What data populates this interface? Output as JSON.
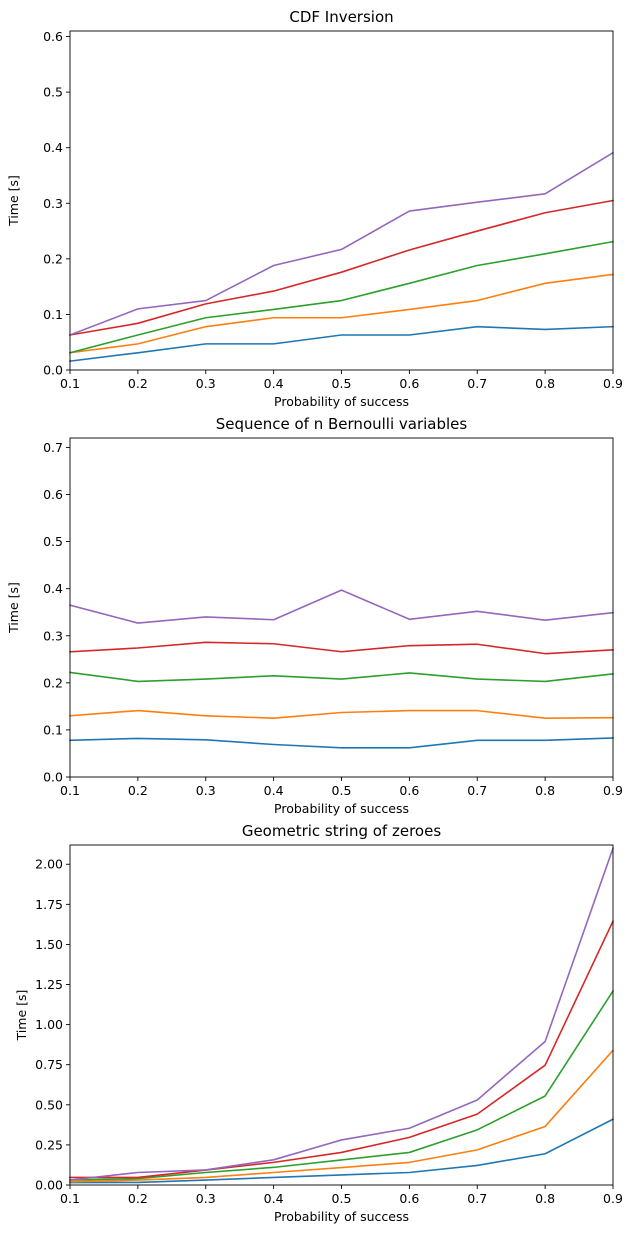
{
  "colors": [
    "#1f77b4",
    "#ff7f0e",
    "#2ca02c",
    "#d62728",
    "#9467bd"
  ],
  "chart_data": [
    {
      "type": "line",
      "title": "CDF Inversion",
      "xlabel": "Probability of success",
      "ylabel": "Time [s]",
      "xlim": [
        0.1,
        0.9
      ],
      "ylim": [
        0,
        0.61
      ],
      "xticks": [
        0.1,
        0.2,
        0.3,
        0.4,
        0.5,
        0.6,
        0.7,
        0.8,
        0.9
      ],
      "xtick_labels": [
        "0.1",
        "0.2",
        "0.3",
        "0.4",
        "0.5",
        "0.6",
        "0.7",
        "0.8",
        "0.9"
      ],
      "yticks": [
        0,
        0.1,
        0.2,
        0.3,
        0.4,
        0.5,
        0.6
      ],
      "ytick_labels": [
        "0.0",
        "0.1",
        "0.2",
        "0.3",
        "0.4",
        "0.5",
        "0.6"
      ],
      "grid": false,
      "x": [
        0.1,
        0.2,
        0.3,
        0.4,
        0.5,
        0.6,
        0.7,
        0.8,
        0.9
      ],
      "series": [
        {
          "values": [
            0.016,
            0.031,
            0.047,
            0.047,
            0.063,
            0.063,
            0.078,
            0.073,
            0.078
          ]
        },
        {
          "values": [
            0.031,
            0.047,
            0.078,
            0.094,
            0.094,
            0.109,
            0.125,
            0.156,
            0.172
          ]
        },
        {
          "values": [
            0.031,
            0.063,
            0.094,
            0.109,
            0.125,
            0.156,
            0.188,
            0.209,
            0.231
          ]
        },
        {
          "values": [
            0.063,
            0.084,
            0.119,
            0.142,
            0.176,
            0.216,
            0.25,
            0.283,
            0.305
          ]
        },
        {
          "values": [
            0.063,
            0.11,
            0.125,
            0.188,
            0.217,
            0.286,
            0.302,
            0.317,
            0.391
          ]
        }
      ]
    },
    {
      "type": "line",
      "title": "Sequence of n Bernoulli variables",
      "xlabel": "Probability of success",
      "ylabel": "Time [s]",
      "xlim": [
        0.1,
        0.9
      ],
      "ylim": [
        0,
        0.72
      ],
      "xticks": [
        0.1,
        0.2,
        0.3,
        0.4,
        0.5,
        0.6,
        0.7,
        0.8,
        0.9
      ],
      "xtick_labels": [
        "0.1",
        "0.2",
        "0.3",
        "0.4",
        "0.5",
        "0.6",
        "0.7",
        "0.8",
        "0.9"
      ],
      "yticks": [
        0,
        0.1,
        0.2,
        0.3,
        0.4,
        0.5,
        0.6,
        0.7
      ],
      "ytick_labels": [
        "0.0",
        "0.1",
        "0.2",
        "0.3",
        "0.4",
        "0.5",
        "0.6",
        "0.7"
      ],
      "grid": false,
      "x": [
        0.1,
        0.2,
        0.3,
        0.4,
        0.5,
        0.6,
        0.7,
        0.8,
        0.9
      ],
      "series": [
        {
          "values": [
            0.078,
            0.082,
            0.079,
            0.069,
            0.062,
            0.062,
            0.078,
            0.078,
            0.083
          ]
        },
        {
          "values": [
            0.13,
            0.141,
            0.13,
            0.125,
            0.137,
            0.141,
            0.141,
            0.125,
            0.126
          ]
        },
        {
          "values": [
            0.222,
            0.203,
            0.208,
            0.215,
            0.208,
            0.221,
            0.208,
            0.203,
            0.219
          ]
        },
        {
          "values": [
            0.266,
            0.274,
            0.286,
            0.283,
            0.266,
            0.279,
            0.282,
            0.262,
            0.27
          ]
        },
        {
          "values": [
            0.365,
            0.327,
            0.34,
            0.334,
            0.397,
            0.335,
            0.352,
            0.333,
            0.349
          ]
        }
      ]
    },
    {
      "type": "line",
      "title": "Geometric string of zeroes",
      "xlabel": "Probability of success",
      "ylabel": "Time [s]",
      "xlim": [
        0.1,
        0.9
      ],
      "ylim": [
        0,
        2.12
      ],
      "xticks": [
        0.1,
        0.2,
        0.3,
        0.4,
        0.5,
        0.6,
        0.7,
        0.8,
        0.9
      ],
      "xtick_labels": [
        "0.1",
        "0.2",
        "0.3",
        "0.4",
        "0.5",
        "0.6",
        "0.7",
        "0.8",
        "0.9"
      ],
      "yticks": [
        0,
        0.25,
        0.5,
        0.75,
        1.0,
        1.25,
        1.5,
        1.75,
        2.0
      ],
      "ytick_labels": [
        "0.00",
        "0.25",
        "0.50",
        "0.75",
        "1.00",
        "1.25",
        "1.50",
        "1.75",
        "2.00"
      ],
      "grid": false,
      "x": [
        0.1,
        0.2,
        0.3,
        0.4,
        0.5,
        0.6,
        0.7,
        0.8,
        0.9
      ],
      "series": [
        {
          "values": [
            0.015,
            0.016,
            0.031,
            0.047,
            0.063,
            0.078,
            0.122,
            0.195,
            0.41
          ]
        },
        {
          "values": [
            0.02,
            0.031,
            0.047,
            0.078,
            0.109,
            0.141,
            0.219,
            0.365,
            0.84
          ]
        },
        {
          "values": [
            0.031,
            0.04,
            0.078,
            0.11,
            0.156,
            0.203,
            0.344,
            0.555,
            1.21
          ]
        },
        {
          "values": [
            0.047,
            0.047,
            0.093,
            0.141,
            0.203,
            0.297,
            0.442,
            0.747,
            1.645
          ]
        },
        {
          "values": [
            0.031,
            0.078,
            0.094,
            0.157,
            0.281,
            0.354,
            0.53,
            0.895,
            2.1
          ]
        }
      ]
    }
  ]
}
